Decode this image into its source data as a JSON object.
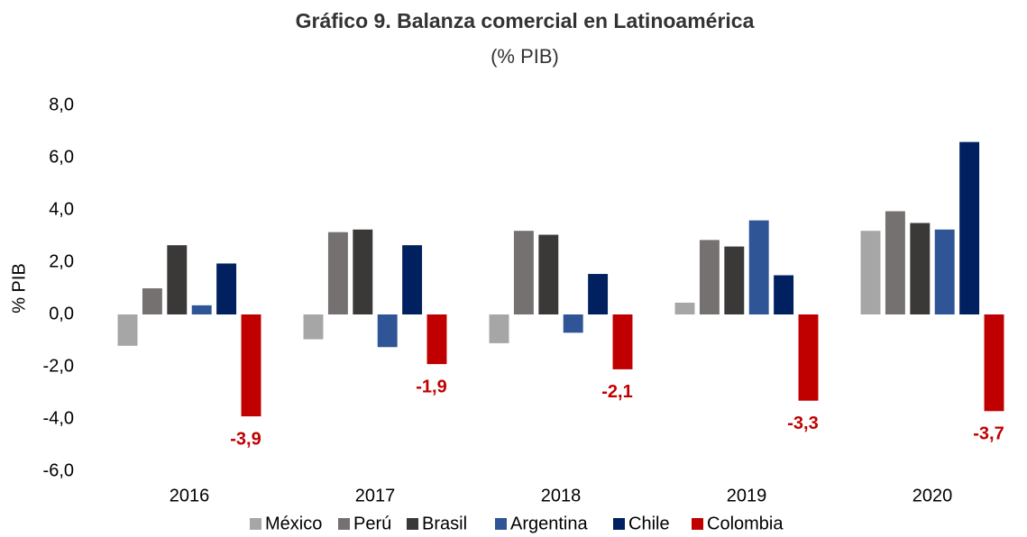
{
  "chart_data": {
    "type": "bar",
    "title": "Gráfico 9. Balanza comercial en Latinoamérica",
    "subtitle": "(% PIB)",
    "y_label": "% PIB",
    "categories": [
      "2016",
      "2017",
      "2018",
      "2019",
      "2020"
    ],
    "series": [
      {
        "name": "México",
        "color": "#a6a6a6",
        "values": [
          -1.2,
          -0.95,
          -1.1,
          0.45,
          3.2
        ]
      },
      {
        "name": "Perú",
        "color": "#767171",
        "values": [
          1.0,
          3.15,
          3.2,
          2.85,
          3.95
        ]
      },
      {
        "name": "Brasil",
        "color": "#3b3838",
        "values": [
          2.65,
          3.25,
          3.05,
          2.6,
          3.5
        ]
      },
      {
        "name": "Argentina",
        "color": "#2f5597",
        "values": [
          0.35,
          -1.25,
          -0.7,
          3.6,
          3.25
        ]
      },
      {
        "name": "Chile",
        "color": "#002060",
        "values": [
          1.95,
          2.65,
          1.55,
          1.5,
          6.6
        ]
      },
      {
        "name": "Colombia",
        "color": "#c00000",
        "values": [
          -3.9,
          -1.9,
          -2.1,
          -3.3,
          -3.7
        ],
        "value_labels": [
          "-3,9",
          "-1,9",
          "-2,1",
          "-3,3",
          "-3,7"
        ]
      }
    ],
    "ylim": [
      -6,
      8
    ],
    "yticks": [
      {
        "value": -6,
        "label": "-6,0"
      },
      {
        "value": -4,
        "label": "-4,0"
      },
      {
        "value": -2,
        "label": "-2,0"
      },
      {
        "value": 0,
        "label": "0,0"
      },
      {
        "value": 2,
        "label": "2,0"
      },
      {
        "value": 4,
        "label": "4,0"
      },
      {
        "value": 6,
        "label": "6,0"
      },
      {
        "value": 8,
        "label": "8,0"
      }
    ],
    "grid": false,
    "legend": "bottom"
  }
}
